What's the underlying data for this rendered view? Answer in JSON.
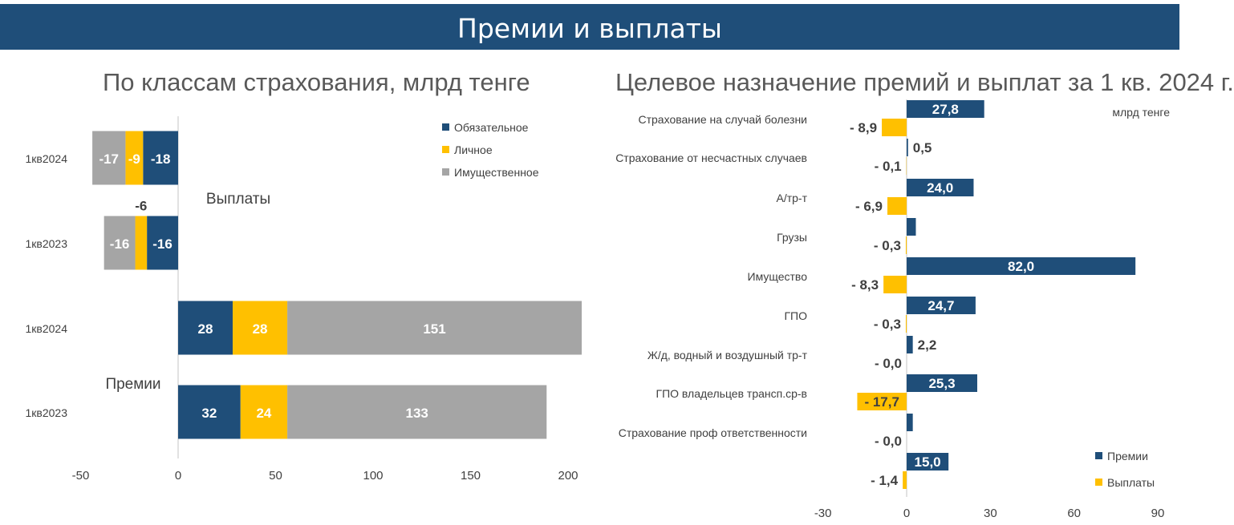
{
  "header": {
    "title": "Премии и выплаты"
  },
  "colors": {
    "header_bg": "#1F4E79",
    "mandatory": "#1F4E79",
    "personal": "#FFC000",
    "property": "#A5A5A5",
    "axis": "#D9D9D9"
  },
  "chart_data": [
    {
      "type": "bar",
      "orientation": "horizontal",
      "stacked": true,
      "title": "По классам страхования, млрд тенге",
      "group_labels": [
        "Выплаты",
        "Премии"
      ],
      "categories": [
        "1кв2024",
        "1кв2023",
        "1кв2024",
        "1кв2023"
      ],
      "series": [
        {
          "name": "Обязательное",
          "color": "#1F4E79",
          "values": [
            -18,
            -16,
            28,
            32
          ],
          "labels": [
            "-18",
            "-16",
            "28",
            "32"
          ]
        },
        {
          "name": "Личное",
          "color": "#FFC000",
          "values": [
            -9,
            -6,
            28,
            24
          ],
          "labels": [
            "-9",
            "-6",
            "28",
            "24"
          ]
        },
        {
          "name": "Имущественное",
          "color": "#A5A5A5",
          "values": [
            -17,
            -16,
            151,
            133
          ],
          "labels": [
            "-17",
            "-16",
            "151",
            "133"
          ]
        }
      ],
      "xlim": [
        -50,
        200
      ],
      "xticks": [
        "-50",
        "0",
        "50",
        "100",
        "150",
        "200"
      ],
      "legend_position": "top-right"
    },
    {
      "type": "bar",
      "orientation": "horizontal",
      "title": "Целевое назначение премий и выплат за 1 кв. 2024 г.",
      "unit_label": "млрд тенге",
      "categories": [
        "Страхование на случай болезни",
        "Страхование от несчастных случаев",
        "А/тр-т",
        "Грузы",
        "Имущество",
        "ГПО",
        "Ж/д, водный и воздушный тр-т",
        "ГПО владельцев трансп.ср-в",
        "Страхование проф ответственности",
        ""
      ],
      "series": [
        {
          "name": "Премии",
          "color": "#1F4E79",
          "values": [
            27.8,
            0.5,
            24.0,
            3.3,
            82.0,
            24.7,
            2.2,
            25.3,
            2.2,
            15.0
          ],
          "labels": [
            "27,8",
            "0,5",
            "24,0",
            "",
            "82,0",
            "24,7",
            "2,2",
            "25,3",
            "",
            "15,0"
          ]
        },
        {
          "name": "Выплаты",
          "color": "#FFC000",
          "values": [
            -8.9,
            -0.1,
            -6.9,
            -0.3,
            -8.3,
            -0.3,
            -0.0,
            -17.7,
            -0.0,
            -1.4
          ],
          "labels": [
            "- 8,9",
            "- 0,1",
            "- 6,9",
            "- 0,3",
            "- 8,3",
            "- 0,3",
            "- 0,0",
            "- 17,7",
            "- 0,0",
            "- 1,4"
          ]
        }
      ],
      "xlim": [
        -30,
        90
      ],
      "xticks": [
        "-30",
        "0",
        "30",
        "60",
        "90"
      ],
      "legend_position": "bottom-right"
    }
  ]
}
